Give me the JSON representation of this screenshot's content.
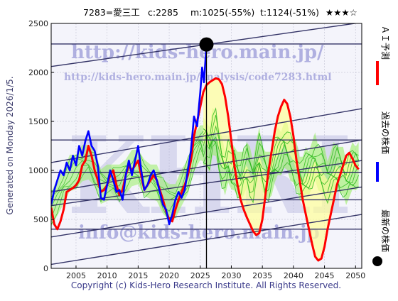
{
  "header": {
    "ticker": "7283=愛三工",
    "current": "c:2285",
    "median": "m:1025(-55%)",
    "target": "t:1124(-51%)",
    "stars": "★★★☆"
  },
  "generated_text": "Generated on Monday 2026/1/5.",
  "copyright": "Copyright (c) Kids-Hero Research Institute. All Rights Reserved.",
  "watermarks": {
    "url": "http://kids-hero.main.jp/",
    "analysis_url": "http://kids-hero.main.jp/analysis/code7283.html",
    "big": "KHRI",
    "email": "info@kids-hero.main.jp"
  },
  "legend": {
    "ai": "ＡＩ予測",
    "past": "過去の株価",
    "latest": "最新の株価"
  },
  "colors": {
    "price": "#0000ff",
    "ai": "#ff0000",
    "band_fill": "#99ee66",
    "band_line": "#33bb22",
    "yellow_fill": "#ffff99",
    "trend": "#333366",
    "latest": "#000000"
  },
  "chart_data": {
    "type": "line",
    "xlim": [
      2001,
      2051
    ],
    "ylim": [
      0,
      2500
    ],
    "xticks": [
      2005,
      2010,
      2015,
      2020,
      2025,
      2030,
      2035,
      2040,
      2045,
      2050
    ],
    "yticks": [
      0,
      500,
      1000,
      1500,
      2000,
      2500
    ],
    "grid": true,
    "latest_point": {
      "x": 2026.0,
      "y": 2285
    },
    "past_price": [
      [
        2001.0,
        650
      ],
      [
        2001.5,
        800
      ],
      [
        2002.0,
        900
      ],
      [
        2002.5,
        1000
      ],
      [
        2003.0,
        950
      ],
      [
        2003.5,
        1080
      ],
      [
        2004.0,
        1000
      ],
      [
        2004.5,
        1150
      ],
      [
        2005.0,
        1050
      ],
      [
        2005.5,
        1250
      ],
      [
        2006.0,
        1150
      ],
      [
        2006.5,
        1300
      ],
      [
        2007.0,
        1400
      ],
      [
        2007.5,
        1250
      ],
      [
        2008.0,
        1200
      ],
      [
        2008.5,
        1050
      ],
      [
        2009.0,
        720
      ],
      [
        2009.5,
        700
      ],
      [
        2010.0,
        850
      ],
      [
        2010.5,
        1000
      ],
      [
        2011.0,
        900
      ],
      [
        2011.5,
        780
      ],
      [
        2012.0,
        800
      ],
      [
        2012.5,
        700
      ],
      [
        2013.0,
        950
      ],
      [
        2013.5,
        1100
      ],
      [
        2014.0,
        950
      ],
      [
        2014.5,
        1100
      ],
      [
        2015.0,
        1250
      ],
      [
        2015.5,
        1000
      ],
      [
        2016.0,
        800
      ],
      [
        2016.5,
        850
      ],
      [
        2017.0,
        950
      ],
      [
        2017.5,
        1000
      ],
      [
        2018.0,
        900
      ],
      [
        2018.5,
        780
      ],
      [
        2019.0,
        650
      ],
      [
        2019.5,
        600
      ],
      [
        2020.0,
        450
      ],
      [
        2020.5,
        550
      ],
      [
        2021.0,
        700
      ],
      [
        2021.5,
        780
      ],
      [
        2022.0,
        720
      ],
      [
        2022.5,
        800
      ],
      [
        2023.0,
        1000
      ],
      [
        2023.5,
        1200
      ],
      [
        2024.0,
        1550
      ],
      [
        2024.5,
        1450
      ],
      [
        2025.0,
        1800
      ],
      [
        2025.3,
        2050
      ],
      [
        2025.6,
        1900
      ],
      [
        2026.0,
        2285
      ]
    ],
    "ai_forecast": [
      [
        2001.0,
        620
      ],
      [
        2001.5,
        450
      ],
      [
        2002.0,
        400
      ],
      [
        2002.5,
        480
      ],
      [
        2003.0,
        600
      ],
      [
        2003.5,
        780
      ],
      [
        2004.0,
        800
      ],
      [
        2004.5,
        820
      ],
      [
        2005.0,
        850
      ],
      [
        2005.5,
        900
      ],
      [
        2006.0,
        1050
      ],
      [
        2006.5,
        1100
      ],
      [
        2007.0,
        1250
      ],
      [
        2007.5,
        1150
      ],
      [
        2008.0,
        1000
      ],
      [
        2008.5,
        900
      ],
      [
        2009.0,
        780
      ],
      [
        2009.5,
        800
      ],
      [
        2010.0,
        850
      ],
      [
        2010.5,
        950
      ],
      [
        2011.0,
        1000
      ],
      [
        2011.5,
        850
      ],
      [
        2012.0,
        750
      ],
      [
        2012.5,
        800
      ],
      [
        2013.0,
        950
      ],
      [
        2013.5,
        1050
      ],
      [
        2014.0,
        1000
      ],
      [
        2014.5,
        1050
      ],
      [
        2015.0,
        1100
      ],
      [
        2015.5,
        950
      ],
      [
        2016.0,
        800
      ],
      [
        2016.5,
        850
      ],
      [
        2017.0,
        900
      ],
      [
        2017.5,
        950
      ],
      [
        2018.0,
        900
      ],
      [
        2018.5,
        800
      ],
      [
        2019.0,
        700
      ],
      [
        2019.5,
        580
      ],
      [
        2020.0,
        500
      ],
      [
        2020.5,
        480
      ],
      [
        2021.0,
        600
      ],
      [
        2021.5,
        700
      ],
      [
        2022.0,
        780
      ],
      [
        2022.5,
        850
      ],
      [
        2023.0,
        950
      ],
      [
        2023.5,
        1100
      ],
      [
        2024.0,
        1350
      ],
      [
        2024.5,
        1500
      ],
      [
        2025.0,
        1650
      ],
      [
        2025.5,
        1800
      ],
      [
        2026.0,
        1870
      ],
      [
        2026.5,
        1900
      ],
      [
        2027.0,
        1920
      ],
      [
        2027.5,
        1940
      ],
      [
        2028.0,
        1930
      ],
      [
        2028.5,
        1880
      ],
      [
        2029.0,
        1750
      ],
      [
        2029.5,
        1550
      ],
      [
        2030.0,
        1300
      ],
      [
        2030.5,
        1050
      ],
      [
        2031.0,
        850
      ],
      [
        2031.5,
        700
      ],
      [
        2032.0,
        600
      ],
      [
        2032.5,
        520
      ],
      [
        2033.0,
        450
      ],
      [
        2033.5,
        380
      ],
      [
        2034.0,
        340
      ],
      [
        2034.5,
        360
      ],
      [
        2035.0,
        500
      ],
      [
        2035.5,
        750
      ],
      [
        2036.0,
        1000
      ],
      [
        2036.5,
        1200
      ],
      [
        2037.0,
        1400
      ],
      [
        2037.5,
        1550
      ],
      [
        2038.0,
        1650
      ],
      [
        2038.5,
        1720
      ],
      [
        2039.0,
        1680
      ],
      [
        2039.5,
        1550
      ],
      [
        2040.0,
        1350
      ],
      [
        2040.5,
        1100
      ],
      [
        2041.0,
        900
      ],
      [
        2041.5,
        700
      ],
      [
        2042.0,
        550
      ],
      [
        2042.5,
        400
      ],
      [
        2043.0,
        250
      ],
      [
        2043.5,
        120
      ],
      [
        2044.0,
        80
      ],
      [
        2044.5,
        100
      ],
      [
        2045.0,
        220
      ],
      [
        2045.5,
        400
      ],
      [
        2046.0,
        550
      ],
      [
        2046.5,
        700
      ],
      [
        2047.0,
        850
      ],
      [
        2047.5,
        950
      ],
      [
        2048.0,
        1050
      ],
      [
        2048.5,
        1150
      ],
      [
        2049.0,
        1180
      ],
      [
        2049.5,
        1120
      ],
      [
        2050.0,
        1050
      ],
      [
        2050.5,
        1010
      ]
    ],
    "band_center": [
      [
        2025.5,
        1250
      ],
      [
        2026.0,
        1300
      ],
      [
        2026.5,
        1200
      ],
      [
        2027.0,
        1350
      ],
      [
        2027.5,
        1400
      ],
      [
        2028.0,
        1200
      ],
      [
        2028.5,
        1050
      ],
      [
        2029.0,
        1000
      ],
      [
        2029.5,
        1100
      ],
      [
        2030.0,
        1000
      ],
      [
        2030.5,
        1050
      ],
      [
        2031.0,
        950
      ],
      [
        2031.5,
        900
      ],
      [
        2032.0,
        1000
      ],
      [
        2032.5,
        1050
      ],
      [
        2033.0,
        950
      ],
      [
        2033.5,
        900
      ],
      [
        2034.0,
        1050
      ],
      [
        2034.5,
        1150
      ],
      [
        2035.0,
        1050
      ],
      [
        2035.5,
        950
      ],
      [
        2036.0,
        900
      ],
      [
        2036.5,
        1000
      ],
      [
        2037.0,
        1100
      ],
      [
        2037.5,
        1150
      ],
      [
        2038.0,
        1200
      ],
      [
        2038.5,
        1250
      ],
      [
        2039.0,
        1200
      ],
      [
        2039.5,
        1150
      ],
      [
        2040.0,
        1100
      ],
      [
        2040.5,
        1000
      ],
      [
        2041.0,
        950
      ],
      [
        2041.5,
        900
      ],
      [
        2042.0,
        950
      ],
      [
        2042.5,
        1000
      ],
      [
        2043.0,
        1050
      ],
      [
        2043.5,
        1100
      ],
      [
        2044.0,
        1050
      ],
      [
        2044.5,
        1000
      ],
      [
        2045.0,
        950
      ],
      [
        2045.5,
        900
      ],
      [
        2046.0,
        950
      ],
      [
        2046.5,
        1000
      ],
      [
        2047.0,
        1050
      ],
      [
        2047.5,
        1000
      ],
      [
        2048.0,
        950
      ],
      [
        2048.5,
        900
      ],
      [
        2049.0,
        950
      ],
      [
        2049.5,
        1000
      ],
      [
        2050.0,
        1050
      ],
      [
        2050.5,
        1050
      ]
    ],
    "band_halfwidth": 230,
    "hist_band": [
      [
        2001.0,
        620
      ],
      [
        2002.0,
        700
      ],
      [
        2003.0,
        850
      ],
      [
        2004.0,
        950
      ],
      [
        2005.0,
        1000
      ],
      [
        2006.0,
        1050
      ],
      [
        2007.0,
        1100
      ],
      [
        2008.0,
        1000
      ],
      [
        2009.0,
        850
      ],
      [
        2010.0,
        850
      ],
      [
        2011.0,
        900
      ],
      [
        2012.0,
        850
      ],
      [
        2013.0,
        950
      ],
      [
        2014.0,
        1000
      ],
      [
        2015.0,
        1050
      ],
      [
        2016.0,
        900
      ],
      [
        2017.0,
        900
      ],
      [
        2018.0,
        850
      ],
      [
        2019.0,
        750
      ],
      [
        2020.0,
        650
      ],
      [
        2021.0,
        700
      ],
      [
        2022.0,
        800
      ],
      [
        2023.0,
        950
      ],
      [
        2024.0,
        1150
      ],
      [
        2025.0,
        1300
      ],
      [
        2025.5,
        1250
      ]
    ],
    "hist_halfwidth": 180,
    "trend_lines": [
      [
        [
          2001,
          40
        ],
        [
          2051,
          550
        ]
      ],
      [
        [
          2001,
          320
        ],
        [
          2051,
          830
        ]
      ],
      [
        [
          2001,
          640
        ],
        [
          2051,
          1100
        ]
      ],
      [
        [
          2001,
          780
        ],
        [
          2051,
          1310
        ]
      ],
      [
        [
          2001,
          1080
        ],
        [
          2051,
          1630
        ]
      ],
      [
        [
          2001,
          2060
        ],
        [
          2051,
          2510
        ]
      ]
    ],
    "h_lines": [
      400,
      700,
      980,
      1310,
      2290
    ]
  }
}
